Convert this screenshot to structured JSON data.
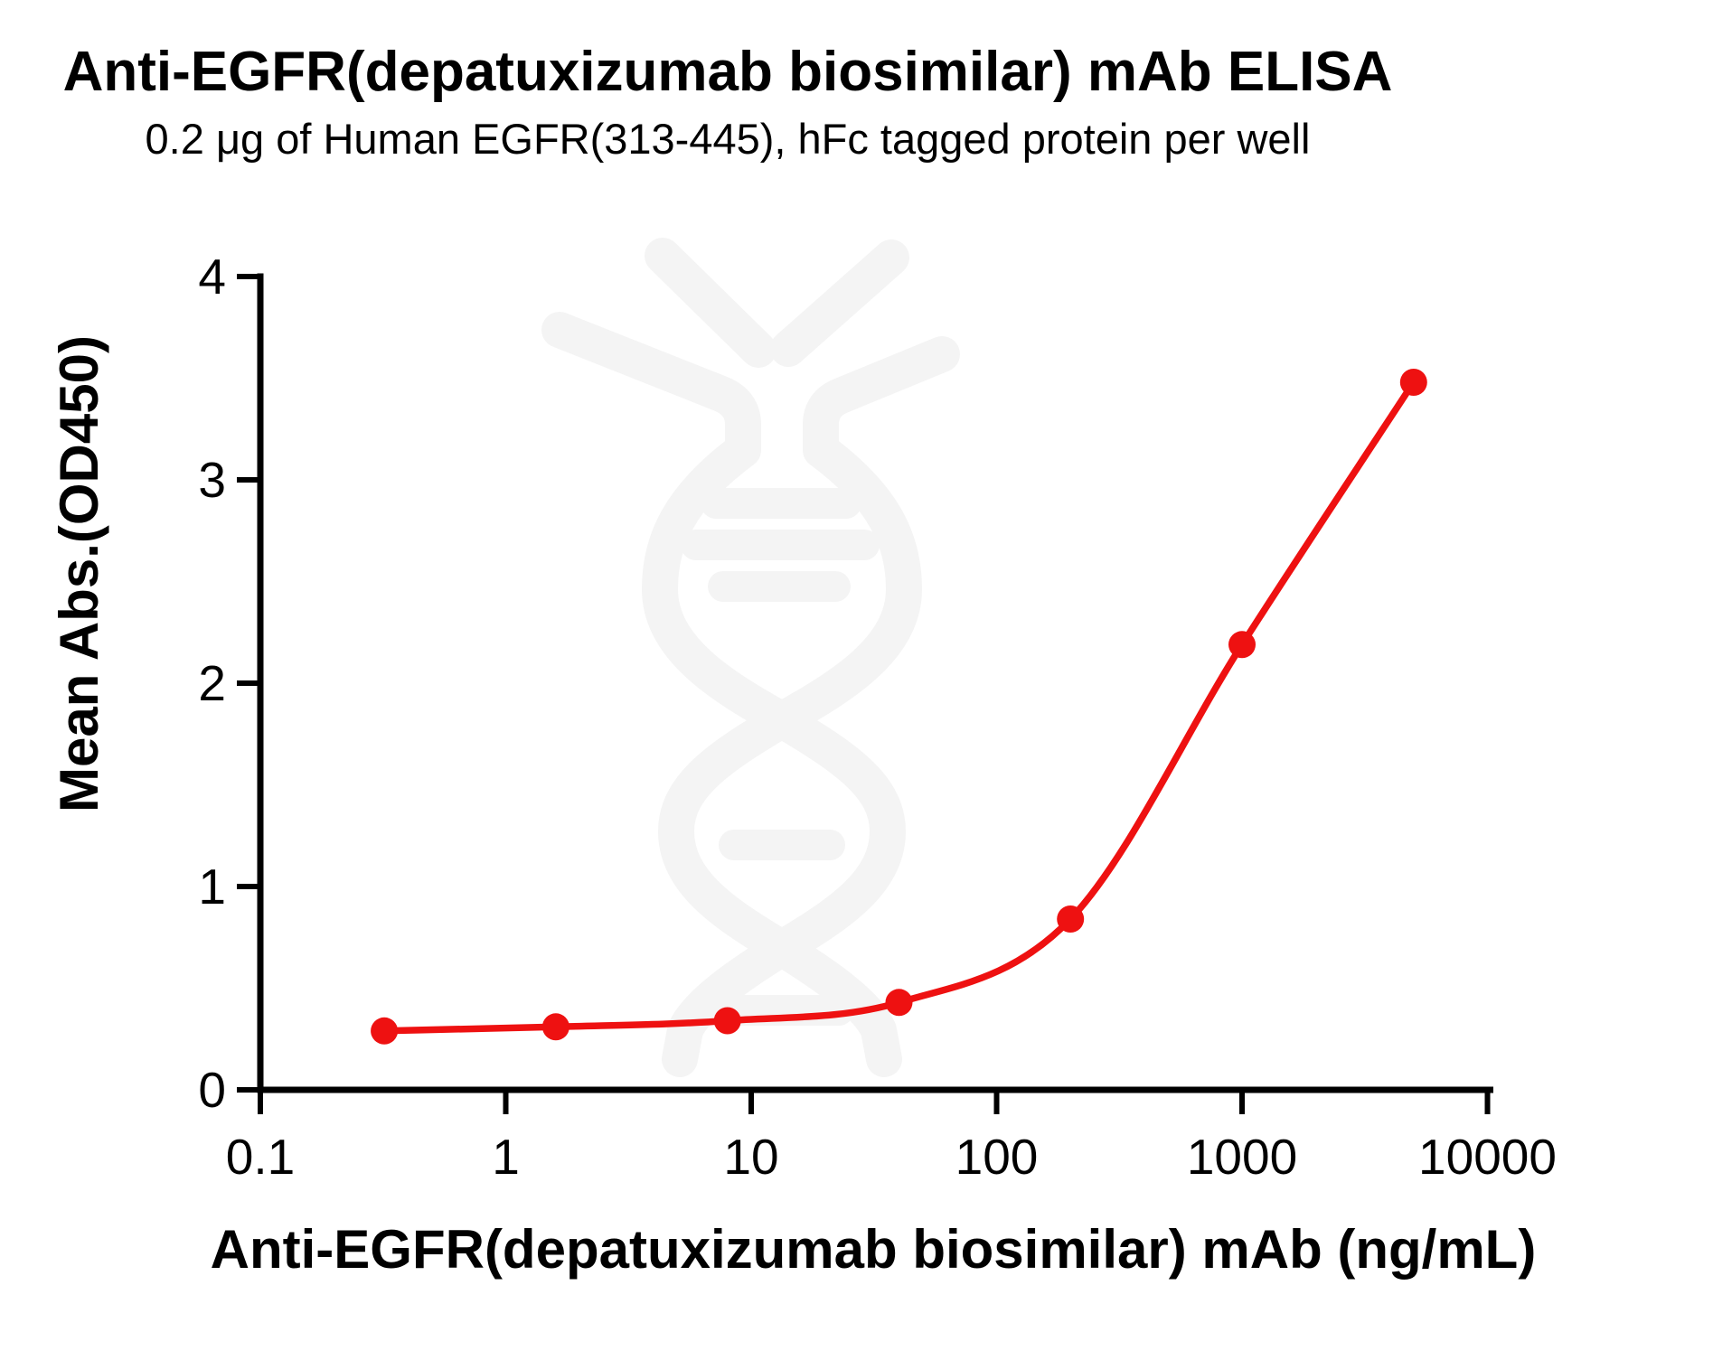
{
  "title": "Anti-EGFR(depatuxizumab biosimilar) mAb ELISA",
  "subtitle": "0.2 μg of Human EGFR(313-445), hFc tagged protein per well",
  "chart_data": {
    "type": "scatter",
    "curve": "sigmoidal 4PL fit line through points",
    "x": [
      0.32,
      1.6,
      8,
      40,
      200,
      1000,
      5000
    ],
    "y": [
      0.29,
      0.31,
      0.34,
      0.43,
      0.84,
      2.19,
      3.48
    ],
    "xlabel": "Anti-EGFR(depatuxizumab biosimilar) mAb (ng/mL)",
    "ylabel": "Mean Abs.(OD450)",
    "x_scale": "log10",
    "xlim": [
      0.1,
      10000
    ],
    "ylim": [
      0,
      4
    ],
    "x_ticks": [
      0.1,
      1,
      10,
      100,
      1000,
      10000
    ],
    "x_tick_labels": [
      "0.1",
      "1",
      "10",
      "100",
      "1000",
      "10000"
    ],
    "y_ticks": [
      0,
      1,
      2,
      3,
      4
    ],
    "y_tick_labels": [
      "0",
      "1",
      "2",
      "3",
      "4"
    ],
    "grid": false,
    "legend": "none",
    "series_color": "#ee1111",
    "axis_color": "#000000"
  },
  "watermark": {
    "name": "dna-antibody-logo",
    "color": "#f4f4f4"
  }
}
